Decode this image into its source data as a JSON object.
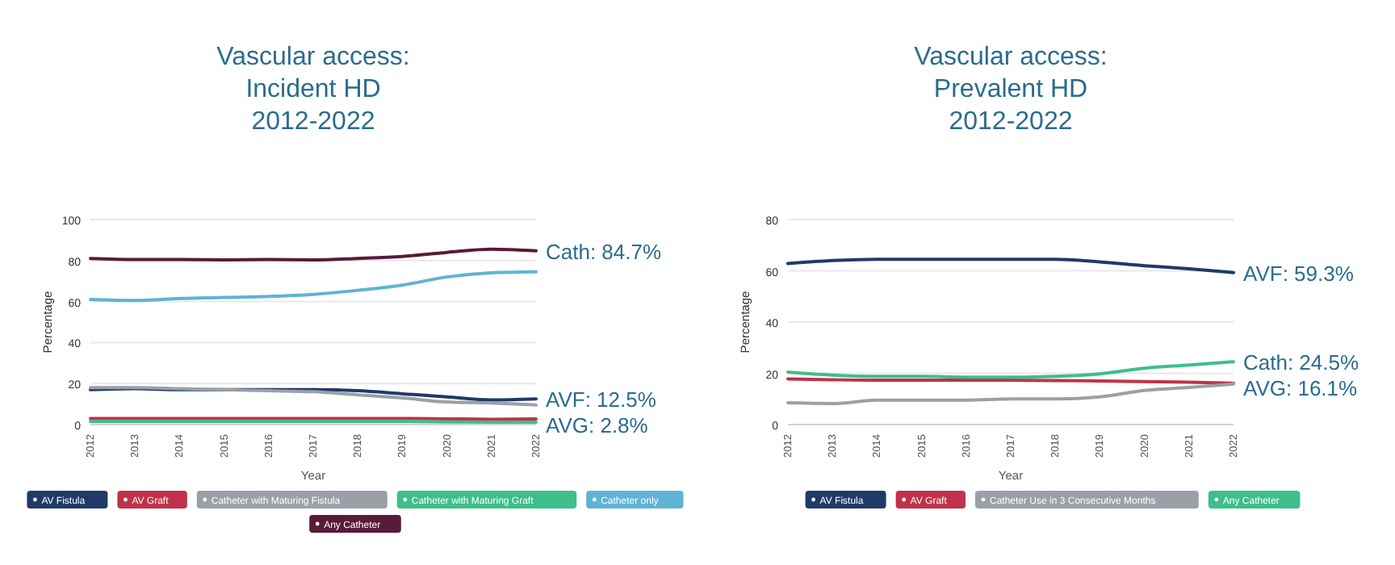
{
  "chart_data": [
    {
      "type": "line",
      "title": "Vascular access:\nIncident HD\n2012-2022",
      "xlabel": "Year",
      "ylabel": "Percentage",
      "categories": [
        "2012",
        "2013",
        "2014",
        "2015",
        "2016",
        "2017",
        "2018",
        "2019",
        "2020",
        "2021",
        "2022"
      ],
      "ylim": [
        0,
        100
      ],
      "yticks": [
        0,
        20,
        40,
        60,
        80,
        100
      ],
      "grid": "y",
      "legend": "bottom",
      "series": [
        {
          "name": "AV Fistula",
          "color": "#1f3a68",
          "values": [
            17,
            17.5,
            17,
            17,
            17,
            17,
            16.5,
            15,
            13.5,
            12,
            12.5
          ]
        },
        {
          "name": "AV Graft",
          "color": "#c0324b",
          "values": [
            3,
            3,
            3,
            3,
            3,
            3,
            3,
            3,
            2.8,
            2.6,
            2.8
          ]
        },
        {
          "name": "Catheter with Maturing Fistula",
          "color": "#9aa0a8",
          "values": [
            18,
            18,
            17.5,
            17,
            16.5,
            16,
            14.5,
            13,
            11,
            10.5,
            9.5
          ]
        },
        {
          "name": "Catheter with Maturing Graft",
          "color": "#3dbf8a",
          "values": [
            1.5,
            1.5,
            1.5,
            1.5,
            1.5,
            1.5,
            1.5,
            1.5,
            1.3,
            1.2,
            1.2
          ]
        },
        {
          "name": "Catheter only",
          "color": "#5fb3d6",
          "values": [
            61,
            60.5,
            61.5,
            62,
            62.5,
            63.5,
            65.5,
            68,
            72,
            74,
            74.5
          ]
        },
        {
          "name": "Any Catheter",
          "color": "#5a1a3a",
          "values": [
            81,
            80.5,
            80.5,
            80.3,
            80.5,
            80.3,
            81,
            82,
            84,
            85.5,
            84.7
          ]
        }
      ],
      "annotations": [
        {
          "text": "Cath: 84.7%",
          "x": "2022",
          "y": 84.7
        },
        {
          "text": "AVF: 12.5%",
          "x": "2022",
          "y": 12.5
        },
        {
          "text": "AVG: 2.8%",
          "x": "2022",
          "y": 2.8
        }
      ]
    },
    {
      "type": "line",
      "title": "Vascular access:\nPrevalent HD\n2012-2022",
      "xlabel": "Year",
      "ylabel": "Percentage",
      "categories": [
        "2012",
        "2013",
        "2014",
        "2015",
        "2016",
        "2017",
        "2018",
        "2019",
        "2020",
        "2021",
        "2022"
      ],
      "ylim": [
        0,
        80
      ],
      "yticks": [
        0,
        20,
        40,
        60,
        80
      ],
      "grid": "y",
      "legend": "bottom",
      "series": [
        {
          "name": "AV Fistula",
          "color": "#1f3a68",
          "values": [
            62.8,
            64,
            64.5,
            64.5,
            64.5,
            64.5,
            64.5,
            63.5,
            62,
            60.8,
            59.3
          ]
        },
        {
          "name": "AV Graft",
          "color": "#c0324b",
          "values": [
            17.8,
            17.5,
            17.3,
            17.3,
            17.3,
            17.3,
            17.2,
            17,
            16.8,
            16.5,
            16.1
          ]
        },
        {
          "name": "Catheter Use in 3 Consecutive Months",
          "color": "#9aa0a8",
          "values": [
            8.5,
            8.2,
            9.5,
            9.5,
            9.5,
            10,
            10,
            10.8,
            13.3,
            14.5,
            15.8
          ]
        },
        {
          "name": "Any Catheter",
          "color": "#3dbf8a",
          "values": [
            20.5,
            19.3,
            18.8,
            18.8,
            18.5,
            18.5,
            18.8,
            19.8,
            22,
            23.2,
            24.5
          ]
        }
      ],
      "annotations": [
        {
          "text": "AVF: 59.3%",
          "x": "2022",
          "y": 59.3
        },
        {
          "text": "Cath: 24.5%",
          "x": "2022",
          "y": 24.5
        },
        {
          "text": "AVG: 16.1%",
          "x": "2022",
          "y": 16.1
        }
      ]
    }
  ]
}
